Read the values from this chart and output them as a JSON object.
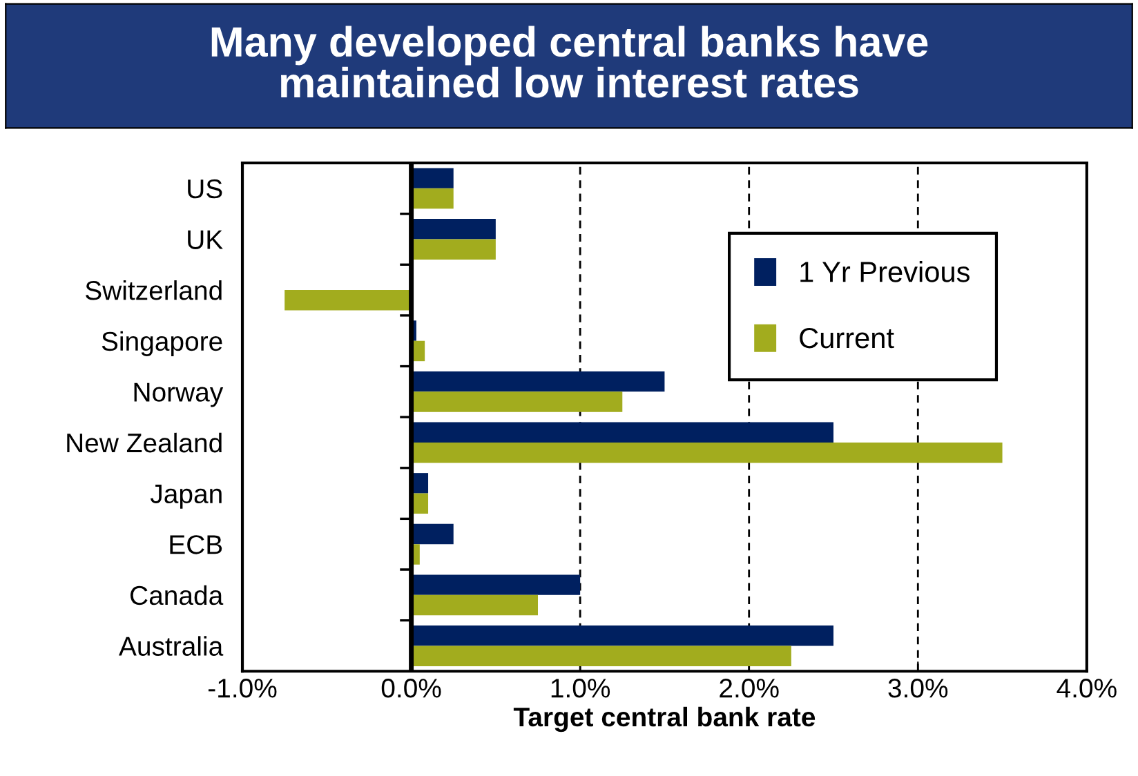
{
  "chart_data": {
    "type": "bar",
    "orientation": "horizontal",
    "title": "Many developed central banks have\nmaintained low interest rates",
    "xlabel": "Target central bank rate",
    "categories": [
      "US",
      "UK",
      "Switzerland",
      "Singapore",
      "Norway",
      "New Zealand",
      "Japan",
      "ECB",
      "Canada",
      "Australia"
    ],
    "series": [
      {
        "name": "1 Yr Previous",
        "color": "#002060",
        "values": [
          0.25,
          0.5,
          0,
          0.03,
          1.5,
          2.5,
          0.1,
          0.25,
          1.0,
          2.5
        ]
      },
      {
        "name": "Current",
        "color": "#a2ac1e",
        "values": [
          0.25,
          0.5,
          -0.75,
          0.08,
          1.25,
          3.5,
          0.1,
          0.05,
          0.75,
          2.25
        ]
      }
    ],
    "xlim": [
      -1,
      4
    ],
    "xticks": [
      {
        "value": -1,
        "label": "-1.0%"
      },
      {
        "value": 0,
        "label": "0.0%"
      },
      {
        "value": 1,
        "label": "1.0%"
      },
      {
        "value": 2,
        "label": "2.0%"
      },
      {
        "value": 3,
        "label": "3.0%"
      },
      {
        "value": 4,
        "label": "4.0%"
      }
    ],
    "grid": "x",
    "legend": "top right"
  }
}
